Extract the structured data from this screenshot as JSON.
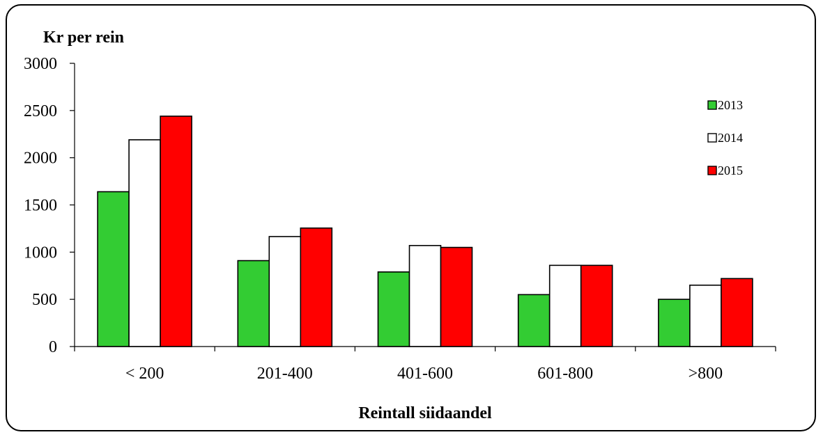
{
  "chart_data": {
    "type": "bar",
    "title": "",
    "ylabel": "Kr per rein",
    "xlabel": "Reintall siidaandel",
    "categories": [
      "< 200",
      "201-400",
      "401-600",
      "601-800",
      ">800"
    ],
    "ylim": [
      0,
      3000
    ],
    "yticks": [
      0,
      500,
      1000,
      1500,
      2000,
      2500,
      3000
    ],
    "grid": false,
    "legend_position": "right",
    "series": [
      {
        "name": "2013",
        "color": "#33cc33",
        "values": [
          1640,
          910,
          790,
          550,
          500
        ]
      },
      {
        "name": "2014",
        "color": "#ffffff",
        "values": [
          2190,
          1165,
          1070,
          860,
          650
        ]
      },
      {
        "name": "2015",
        "color": "#ff0000",
        "values": [
          2440,
          1255,
          1050,
          860,
          720
        ]
      }
    ]
  }
}
